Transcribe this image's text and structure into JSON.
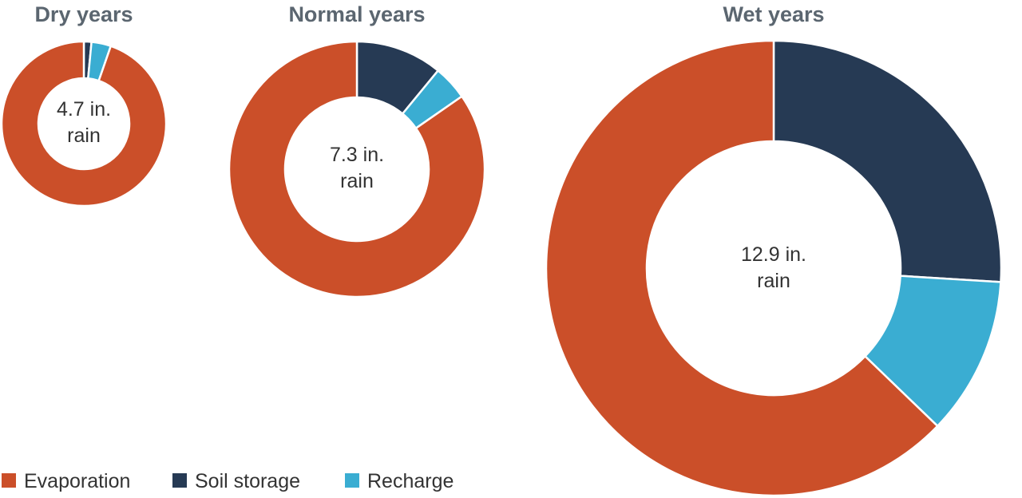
{
  "chart_data": [
    {
      "type": "donut",
      "title": "Dry years",
      "center_label": [
        "4.7 in.",
        "rain"
      ],
      "rain_inches": 4.7,
      "categories": [
        "Evaporation",
        "Soil storage",
        "Recharge"
      ],
      "values": [
        4.45,
        0.07,
        0.18
      ]
    },
    {
      "type": "donut",
      "title": "Normal years",
      "center_label": [
        "7.3 in.",
        "rain"
      ],
      "rain_inches": 7.3,
      "categories": [
        "Evaporation",
        "Soil storage",
        "Recharge"
      ],
      "values": [
        6.18,
        0.8,
        0.32
      ]
    },
    {
      "type": "donut",
      "title": "Wet years",
      "center_label": [
        "12.9 in.",
        "rain"
      ],
      "rain_inches": 12.9,
      "categories": [
        "Evaporation",
        "Soil storage",
        "Recharge"
      ],
      "values": [
        8.1,
        3.35,
        1.45
      ]
    }
  ],
  "legend": {
    "placement": "bottom-left",
    "items": [
      {
        "label": "Evaporation",
        "color": "#cb4f29"
      },
      {
        "label": "Soil storage",
        "color": "#263a54"
      },
      {
        "label": "Recharge",
        "color": "#3aadd2"
      }
    ]
  }
}
